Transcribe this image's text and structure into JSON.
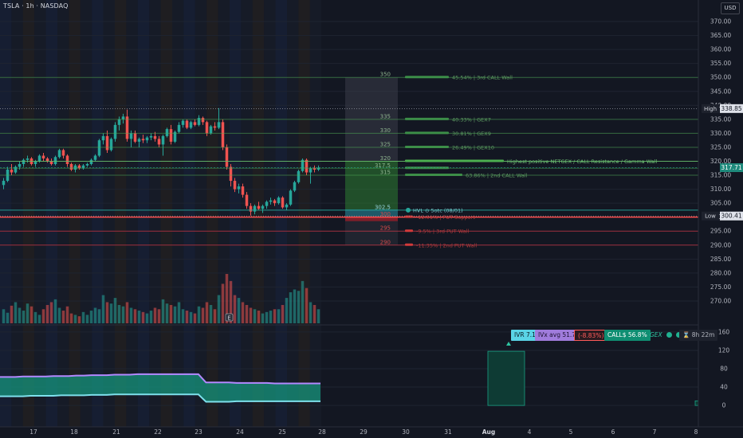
{
  "header": {
    "symbol": "TSLA · 1h · NASDAQ",
    "currency": "USD"
  },
  "price_axis": {
    "ticks": [
      "370.00",
      "365.00",
      "360.00",
      "355.00",
      "350.00",
      "345.00",
      "340.00",
      "335.00",
      "330.00",
      "325.00",
      "320.00",
      "315.00",
      "310.00",
      "305.00",
      "300.00",
      "295.00",
      "290.00",
      "285.00",
      "280.00",
      "275.00",
      "270.00"
    ],
    "high_label": "High",
    "high_value": "338.85",
    "low_label": "Low",
    "low_value": "300.41",
    "last_value": "317.71"
  },
  "pane_axis": {
    "ticks": [
      "160",
      "120",
      "80",
      "40",
      "0"
    ]
  },
  "time_axis": {
    "ticks": [
      "17",
      "18",
      "21",
      "22",
      "23",
      "24",
      "25",
      "28",
      "29",
      "30",
      "31",
      "Aug",
      "4",
      "5",
      "6",
      "7",
      "8"
    ]
  },
  "levels": [
    {
      "strike": "350",
      "label": "45.54% | 3rd CALL Wall",
      "price": 350,
      "kind": "call"
    },
    {
      "strike": "335",
      "label": "40.33% | GEX7",
      "price": 335,
      "kind": "call"
    },
    {
      "strike": "330",
      "label": "30.81% | GEX9",
      "price": 330,
      "kind": "call"
    },
    {
      "strike": "325",
      "label": "26.49% | GEX10",
      "price": 325,
      "kind": "call"
    },
    {
      "strike": "320",
      "label": "Highest positive NETGEX / CALL Resistance / Gamma Wall",
      "price": 320,
      "kind": "call_main"
    },
    {
      "strike": "317.5",
      "label": "",
      "price": 317.5,
      "kind": "call"
    },
    {
      "strike": "315",
      "label": "63.86% | 2nd CALL Wall",
      "price": 315,
      "kind": "call"
    },
    {
      "strike": "302.5",
      "label": "HVL ⊙ 5otc (08/01)",
      "price": 302.5,
      "kind": "hvl"
    },
    {
      "strike": "300",
      "label": "-12.01% | PUT Support",
      "price": 300,
      "kind": "put_main"
    },
    {
      "strike": "295",
      "label": "-9.5% | 3rd PUT Wall",
      "price": 295,
      "kind": "put"
    },
    {
      "strike": "290",
      "label": "-11.35% | 2nd PUT Wall",
      "price": 290,
      "kind": "put"
    }
  ],
  "stats": {
    "ivr": "IVR 7.1",
    "ivx": "IVx avg 51.7",
    "change": "(-8.83%)",
    "calls": "CALL$ 56.8%",
    "gex": "GEX",
    "timer": "⌛ 8h 22m"
  },
  "event_marker": "E",
  "colors": {
    "up": "#26a69a",
    "down": "#ef5350",
    "call_line": "#4caf50",
    "put_line": "#f23645",
    "last_price": "#1e8a7c",
    "ivr_bg": "#5ad4e6",
    "ivx_bg": "#a07cdc",
    "calls_bg": "#0f8e72"
  },
  "chart_data": {
    "type": "candlestick",
    "symbol": "TSLA",
    "interval": "1h",
    "exchange": "NASDAQ",
    "ylim": [
      266,
      372
    ],
    "high": 338.85,
    "low": 300.41,
    "last": 317.71,
    "candles": [
      [
        311.5,
        314.0,
        310.0,
        313.0
      ],
      [
        313.0,
        318.0,
        312.5,
        317.0
      ],
      [
        317.0,
        319.0,
        315.0,
        316.0
      ],
      [
        316.0,
        318.5,
        315.5,
        318.0
      ],
      [
        318.0,
        320.0,
        317.0,
        319.0
      ],
      [
        319.0,
        321.0,
        318.0,
        320.5
      ],
      [
        320.5,
        322.0,
        319.5,
        321.0
      ],
      [
        321.0,
        321.5,
        318.5,
        319.0
      ],
      [
        319.0,
        320.5,
        318.0,
        320.0
      ],
      [
        320.0,
        322.5,
        319.5,
        322.0
      ],
      [
        322.0,
        323.0,
        320.0,
        321.0
      ],
      [
        321.0,
        321.5,
        319.5,
        320.0
      ],
      [
        320.0,
        321.0,
        318.5,
        319.0
      ],
      [
        319.0,
        322.0,
        318.5,
        321.5
      ],
      [
        321.5,
        324.5,
        321.0,
        324.0
      ],
      [
        324.0,
        324.5,
        321.0,
        322.0
      ],
      [
        322.0,
        322.5,
        318.0,
        319.0
      ],
      [
        319.0,
        319.5,
        316.5,
        317.0
      ],
      [
        317.0,
        319.0,
        316.0,
        318.5
      ],
      [
        318.5,
        319.0,
        317.0,
        317.5
      ],
      [
        317.5,
        319.0,
        317.0,
        318.5
      ],
      [
        318.5,
        319.5,
        318.0,
        319.0
      ],
      [
        319.0,
        321.0,
        318.5,
        320.5
      ],
      [
        320.5,
        322.5,
        320.0,
        322.0
      ],
      [
        322.0,
        328.0,
        321.5,
        327.5
      ],
      [
        327.5,
        330.0,
        326.0,
        329.0
      ],
      [
        329.0,
        331.0,
        323.0,
        324.0
      ],
      [
        324.0,
        328.5,
        323.5,
        328.0
      ],
      [
        328.0,
        334.0,
        327.0,
        333.0
      ],
      [
        333.0,
        336.0,
        331.0,
        335.0
      ],
      [
        335.0,
        337.0,
        333.5,
        336.0
      ],
      [
        336.0,
        338.5,
        327.0,
        328.0
      ],
      [
        328.0,
        331.0,
        325.0,
        330.0
      ],
      [
        330.0,
        331.0,
        326.5,
        327.0
      ],
      [
        327.0,
        328.5,
        325.0,
        328.0
      ],
      [
        328.0,
        329.5,
        326.5,
        327.5
      ],
      [
        327.5,
        329.0,
        326.5,
        328.5
      ],
      [
        328.5,
        330.0,
        327.5,
        329.0
      ],
      [
        329.0,
        330.5,
        327.0,
        328.0
      ],
      [
        328.0,
        329.0,
        325.0,
        326.0
      ],
      [
        326.0,
        329.5,
        322.0,
        329.0
      ],
      [
        329.0,
        332.0,
        328.5,
        331.5
      ],
      [
        331.5,
        333.0,
        326.0,
        327.0
      ],
      [
        327.0,
        331.0,
        326.5,
        330.5
      ],
      [
        330.5,
        334.0,
        330.0,
        333.0
      ],
      [
        333.0,
        335.0,
        332.0,
        334.5
      ],
      [
        334.5,
        335.0,
        331.5,
        332.0
      ],
      [
        332.0,
        334.5,
        331.5,
        334.0
      ],
      [
        334.0,
        335.0,
        332.5,
        333.0
      ],
      [
        333.0,
        336.5,
        332.5,
        335.5
      ],
      [
        335.5,
        336.0,
        333.0,
        334.0
      ],
      [
        334.0,
        334.5,
        329.0,
        330.0
      ],
      [
        330.0,
        333.0,
        329.5,
        332.5
      ],
      [
        332.5,
        334.0,
        331.0,
        332.0
      ],
      [
        332.0,
        339.0,
        331.5,
        334.0
      ],
      [
        334.0,
        335.0,
        324.0,
        325.0
      ],
      [
        325.0,
        326.0,
        317.0,
        318.0
      ],
      [
        318.0,
        319.0,
        311.0,
        313.0
      ],
      [
        313.0,
        314.0,
        309.0,
        310.0
      ],
      [
        310.0,
        312.0,
        308.5,
        311.0
      ],
      [
        311.0,
        312.0,
        307.0,
        308.0
      ],
      [
        308.0,
        309.0,
        303.0,
        304.0
      ],
      [
        304.0,
        305.0,
        300.5,
        302.0
      ],
      [
        302.0,
        304.5,
        301.0,
        304.0
      ],
      [
        304.0,
        305.5,
        302.5,
        303.0
      ],
      [
        303.0,
        304.5,
        301.5,
        304.0
      ],
      [
        304.0,
        306.0,
        303.0,
        305.5
      ],
      [
        305.5,
        307.0,
        304.5,
        306.0
      ],
      [
        306.0,
        306.5,
        304.0,
        305.0
      ],
      [
        305.0,
        307.5,
        304.5,
        307.0
      ],
      [
        307.0,
        307.5,
        303.0,
        303.5
      ],
      [
        303.5,
        305.0,
        302.5,
        304.5
      ],
      [
        304.5,
        310.0,
        304.0,
        309.5
      ],
      [
        309.5,
        313.0,
        309.0,
        312.5
      ],
      [
        312.5,
        317.0,
        312.0,
        316.5
      ],
      [
        316.5,
        321.0,
        316.0,
        320.5
      ],
      [
        320.5,
        321.0,
        315.0,
        316.0
      ],
      [
        316.0,
        318.0,
        312.0,
        317.5
      ],
      [
        317.5,
        318.5,
        316.0,
        317.0
      ],
      [
        317.0,
        318.5,
        316.5,
        317.71
      ]
    ],
    "volume": [
      20,
      15,
      25,
      30,
      22,
      18,
      28,
      24,
      16,
      12,
      20,
      26,
      30,
      34,
      22,
      18,
      24,
      14,
      12,
      10,
      16,
      12,
      18,
      22,
      20,
      40,
      30,
      28,
      36,
      26,
      24,
      30,
      22,
      20,
      18,
      16,
      14,
      18,
      22,
      20,
      34,
      28,
      26,
      24,
      30,
      20,
      18,
      16,
      14,
      24,
      22,
      30,
      26,
      20,
      40,
      56,
      70,
      60,
      40,
      36,
      30,
      26,
      22,
      20,
      18,
      14,
      16,
      18,
      20,
      20,
      26,
      36,
      44,
      48,
      46,
      60,
      50,
      30,
      26,
      20
    ],
    "ivx_series": [
      62,
      62,
      62,
      63,
      63,
      63,
      63,
      64,
      64,
      64,
      65,
      65,
      66,
      66,
      66,
      67,
      67,
      67,
      68,
      68,
      68,
      68,
      68,
      68,
      68,
      68,
      68,
      50,
      50,
      50,
      50,
      49,
      49,
      49,
      49,
      49,
      48,
      48,
      48,
      48,
      48,
      48,
      48
    ],
    "iv_series": [
      20,
      20,
      20,
      20,
      21,
      21,
      21,
      21,
      22,
      22,
      22,
      22,
      23,
      23,
      23,
      24,
      24,
      24,
      24,
      24,
      24,
      24,
      24,
      24,
      24,
      24,
      24,
      8,
      8,
      8,
      8,
      9,
      9,
      9,
      9,
      9,
      9,
      9,
      9,
      9,
      9,
      9,
      9
    ],
    "pane_ylim": [
      -5,
      165
    ],
    "pane_bar": 118,
    "pane_right_bar": 10
  }
}
